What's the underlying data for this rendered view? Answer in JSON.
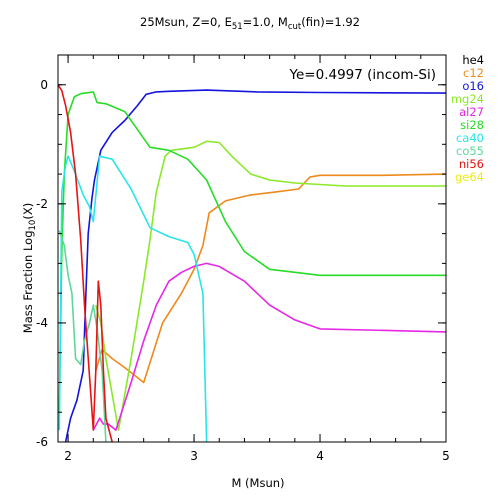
{
  "chart_data": {
    "type": "line",
    "title": {
      "prefix": "25Msun, Z=0, E",
      "e_sub": "51",
      "mid": "=1.0, M",
      "m_sub": "cut",
      "suffix": "(fin)=1.92"
    },
    "annotation": "Ye=0.4997 (incom-Si)",
    "xlabel": "M (Msun)",
    "ylabel": {
      "prefix": "Mass Fraction Log",
      "sub": "10",
      "suffix": "(X)"
    },
    "xlim": [
      1.92,
      5.0
    ],
    "ylim": [
      -6,
      0.5
    ],
    "x_ticks": [
      2,
      3,
      4,
      5
    ],
    "y_ticks": [
      0,
      -2,
      -4,
      -6
    ],
    "grid": false,
    "legend_position": "right",
    "series": [
      {
        "name": "he4",
        "color": "#000000",
        "points": []
      },
      {
        "name": "c12",
        "color": "#ee8a1c",
        "points": [
          [
            2.22,
            -4.8
          ],
          [
            2.27,
            -4.45
          ],
          [
            2.35,
            -4.6
          ],
          [
            2.45,
            -4.75
          ],
          [
            2.6,
            -5.0
          ],
          [
            2.75,
            -4.0
          ],
          [
            2.9,
            -3.5
          ],
          [
            3.0,
            -3.1
          ],
          [
            3.07,
            -2.7
          ],
          [
            3.12,
            -2.15
          ],
          [
            3.25,
            -1.95
          ],
          [
            3.45,
            -1.85
          ],
          [
            3.65,
            -1.8
          ],
          [
            3.83,
            -1.75
          ],
          [
            3.92,
            -1.55
          ],
          [
            4.0,
            -1.52
          ],
          [
            4.5,
            -1.52
          ],
          [
            5.0,
            -1.5
          ]
        ]
      },
      {
        "name": "o16",
        "color": "#1414dc",
        "points": [
          [
            1.98,
            -6.0
          ],
          [
            2.02,
            -5.6
          ],
          [
            2.07,
            -5.3
          ],
          [
            2.12,
            -4.8
          ],
          [
            2.14,
            -3.6
          ],
          [
            2.16,
            -2.5
          ],
          [
            2.19,
            -1.9
          ],
          [
            2.21,
            -1.6
          ],
          [
            2.26,
            -1.1
          ],
          [
            2.35,
            -0.8
          ],
          [
            2.45,
            -0.6
          ],
          [
            2.55,
            -0.35
          ],
          [
            2.62,
            -0.16
          ],
          [
            2.7,
            -0.12
          ],
          [
            2.8,
            -0.11
          ],
          [
            3.1,
            -0.09
          ],
          [
            3.5,
            -0.12
          ],
          [
            4.0,
            -0.13
          ],
          [
            5.0,
            -0.14
          ]
        ]
      },
      {
        "name": "mg24",
        "color": "#8ce82a",
        "points": [
          [
            2.22,
            -3.7
          ],
          [
            2.26,
            -4.0
          ],
          [
            2.3,
            -4.6
          ],
          [
            2.4,
            -5.8
          ],
          [
            2.5,
            -4.6
          ],
          [
            2.6,
            -3.3
          ],
          [
            2.65,
            -2.6
          ],
          [
            2.7,
            -1.8
          ],
          [
            2.77,
            -1.2
          ],
          [
            2.82,
            -1.1
          ],
          [
            3.0,
            -1.05
          ],
          [
            3.1,
            -0.95
          ],
          [
            3.2,
            -0.97
          ],
          [
            3.3,
            -1.2
          ],
          [
            3.45,
            -1.5
          ],
          [
            3.6,
            -1.6
          ],
          [
            3.8,
            -1.65
          ],
          [
            4.2,
            -1.7
          ],
          [
            5.0,
            -1.7
          ]
        ]
      },
      {
        "name": "al27",
        "color": "#e628e6",
        "points": [
          [
            2.2,
            -5.8
          ],
          [
            2.25,
            -5.6
          ],
          [
            2.28,
            -5.7
          ],
          [
            2.32,
            -5.7
          ],
          [
            2.38,
            -5.8
          ],
          [
            2.5,
            -5.0
          ],
          [
            2.6,
            -4.3
          ],
          [
            2.7,
            -3.7
          ],
          [
            2.8,
            -3.3
          ],
          [
            2.9,
            -3.15
          ],
          [
            3.0,
            -3.05
          ],
          [
            3.1,
            -3.0
          ],
          [
            3.2,
            -3.05
          ],
          [
            3.4,
            -3.3
          ],
          [
            3.6,
            -3.7
          ],
          [
            3.8,
            -3.95
          ],
          [
            4.0,
            -4.1
          ],
          [
            5.0,
            -4.15
          ]
        ]
      },
      {
        "name": "si28",
        "color": "#28dc28",
        "points": [
          [
            1.93,
            -5.5
          ],
          [
            1.95,
            -2.8
          ],
          [
            1.97,
            -1.5
          ],
          [
            2.0,
            -0.5
          ],
          [
            2.05,
            -0.2
          ],
          [
            2.1,
            -0.15
          ],
          [
            2.2,
            -0.12
          ],
          [
            2.23,
            -0.3
          ],
          [
            2.3,
            -0.32
          ],
          [
            2.45,
            -0.45
          ],
          [
            2.55,
            -0.75
          ],
          [
            2.65,
            -1.05
          ],
          [
            2.8,
            -1.1
          ],
          [
            2.95,
            -1.25
          ],
          [
            3.1,
            -1.6
          ],
          [
            3.25,
            -2.3
          ],
          [
            3.4,
            -2.8
          ],
          [
            3.6,
            -3.1
          ],
          [
            4.0,
            -3.2
          ],
          [
            5.0,
            -3.2
          ]
        ]
      },
      {
        "name": "ca40",
        "color": "#28e6e6",
        "points": [
          [
            1.93,
            -5.8
          ],
          [
            1.95,
            -1.8
          ],
          [
            1.98,
            -1.35
          ],
          [
            2.0,
            -1.2
          ],
          [
            2.05,
            -1.45
          ],
          [
            2.12,
            -1.85
          ],
          [
            2.17,
            -2.05
          ],
          [
            2.2,
            -2.3
          ],
          [
            2.25,
            -1.2
          ],
          [
            2.35,
            -1.25
          ],
          [
            2.5,
            -1.75
          ],
          [
            2.65,
            -2.4
          ],
          [
            2.8,
            -2.55
          ],
          [
            2.95,
            -2.65
          ],
          [
            3.0,
            -2.85
          ],
          [
            3.07,
            -3.5
          ],
          [
            3.1,
            -6.0
          ]
        ]
      },
      {
        "name": "co55",
        "color": "#5ed89a",
        "points": [
          [
            1.93,
            -2.45
          ],
          [
            1.97,
            -2.7
          ],
          [
            2.0,
            -3.2
          ],
          [
            2.03,
            -3.5
          ],
          [
            2.06,
            -4.6
          ],
          [
            2.1,
            -4.7
          ],
          [
            2.13,
            -4.3
          ],
          [
            2.17,
            -4.0
          ],
          [
            2.2,
            -3.7
          ],
          [
            2.23,
            -4.1
          ],
          [
            2.27,
            -4.8
          ],
          [
            2.3,
            -6.0
          ]
        ]
      },
      {
        "name": "ni56",
        "color": "#e61414",
        "points": [
          [
            1.92,
            0.0
          ],
          [
            1.95,
            -0.1
          ],
          [
            1.98,
            -0.35
          ],
          [
            2.02,
            -0.8
          ],
          [
            2.06,
            -1.5
          ],
          [
            2.1,
            -2.6
          ],
          [
            2.13,
            -3.7
          ],
          [
            2.15,
            -4.3
          ],
          [
            2.18,
            -5.2
          ],
          [
            2.2,
            -5.8
          ],
          [
            2.22,
            -4.8
          ],
          [
            2.24,
            -3.3
          ],
          [
            2.26,
            -3.7
          ],
          [
            2.28,
            -4.8
          ],
          [
            2.3,
            -5.6
          ],
          [
            2.35,
            -6.0
          ]
        ]
      },
      {
        "name": "ge64",
        "color": "#ebeb14",
        "points": []
      }
    ]
  }
}
